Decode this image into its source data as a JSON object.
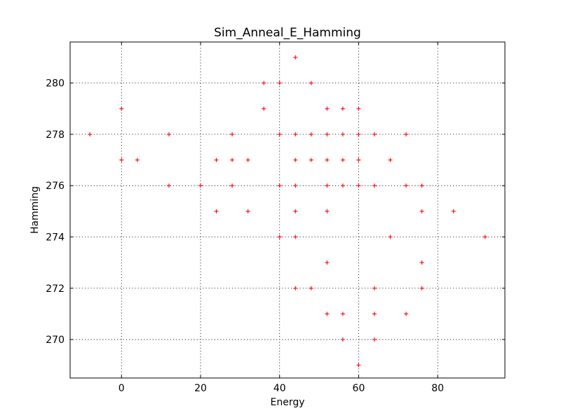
{
  "chart_data": {
    "type": "scatter",
    "title": "Sim_Anneal_E_Hamming",
    "xlabel": "Energy",
    "ylabel": "Hamming",
    "xlim": [
      -13,
      97
    ],
    "ylim": [
      268.5,
      281.6
    ],
    "xticks": [
      0,
      20,
      40,
      60,
      80
    ],
    "yticks": [
      270,
      272,
      274,
      276,
      278,
      280
    ],
    "grid": true,
    "marker": "+",
    "marker_color": "#ff0000",
    "series": [
      {
        "points": [
          [
            -8,
            278
          ],
          [
            0,
            279
          ],
          [
            0,
            277
          ],
          [
            4,
            277
          ],
          [
            12,
            278
          ],
          [
            12,
            276
          ],
          [
            20,
            276
          ],
          [
            24,
            277
          ],
          [
            24,
            275
          ],
          [
            28,
            278
          ],
          [
            28,
            277
          ],
          [
            28,
            276
          ],
          [
            32,
            277
          ],
          [
            32,
            275
          ],
          [
            36,
            280
          ],
          [
            36,
            279
          ],
          [
            40,
            280
          ],
          [
            40,
            278
          ],
          [
            40,
            276
          ],
          [
            40,
            274
          ],
          [
            44,
            281
          ],
          [
            44,
            278
          ],
          [
            44,
            277
          ],
          [
            44,
            276
          ],
          [
            44,
            275
          ],
          [
            44,
            274
          ],
          [
            44,
            272
          ],
          [
            48,
            280
          ],
          [
            48,
            278
          ],
          [
            48,
            277
          ],
          [
            48,
            272
          ],
          [
            52,
            279
          ],
          [
            52,
            278
          ],
          [
            52,
            277
          ],
          [
            52,
            276
          ],
          [
            52,
            275
          ],
          [
            52,
            273
          ],
          [
            52,
            271
          ],
          [
            56,
            279
          ],
          [
            56,
            278
          ],
          [
            56,
            277
          ],
          [
            56,
            276
          ],
          [
            56,
            271
          ],
          [
            56,
            270
          ],
          [
            60,
            279
          ],
          [
            60,
            278
          ],
          [
            60,
            277
          ],
          [
            60,
            276
          ],
          [
            60,
            269
          ],
          [
            64,
            278
          ],
          [
            64,
            276
          ],
          [
            64,
            272
          ],
          [
            64,
            271
          ],
          [
            64,
            270
          ],
          [
            68,
            277
          ],
          [
            68,
            274
          ],
          [
            72,
            278
          ],
          [
            72,
            276
          ],
          [
            72,
            271
          ],
          [
            76,
            276
          ],
          [
            76,
            275
          ],
          [
            76,
            273
          ],
          [
            76,
            272
          ],
          [
            84,
            275
          ],
          [
            92,
            274
          ]
        ]
      }
    ]
  }
}
